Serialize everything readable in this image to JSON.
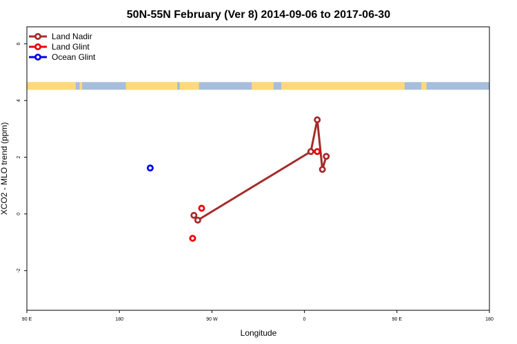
{
  "chart_data": {
    "type": "scatter",
    "title": "50N-55N February (Ver 8)   2014-09-06 to 2017-06-30",
    "xlabel": "Longitude",
    "ylabel": "XCO2 - MLO trend (ppm)",
    "xlim": [
      -180,
      180
    ],
    "ylim": [
      -3.4,
      6.6
    ],
    "x_ticks": [
      {
        "value": -180,
        "label": "90 E"
      },
      {
        "value": -108,
        "label": "180"
      },
      {
        "value": -36,
        "label": "90 W"
      },
      {
        "value": 36,
        "label": "0"
      },
      {
        "value": 108,
        "label": "90 E"
      },
      {
        "value": 180,
        "label": "180"
      }
    ],
    "y_ticks": [
      {
        "value": -2,
        "label": "-2"
      },
      {
        "value": 0,
        "label": "0"
      },
      {
        "value": 2,
        "label": "2"
      },
      {
        "value": 4,
        "label": "4"
      },
      {
        "value": 6,
        "label": "6"
      }
    ],
    "legend_position": "top-left",
    "land_mask_band": {
      "y_bottom": 4.38,
      "y_top": 4.65,
      "land_color": "#FFD97A",
      "ocean_color": "#A6BDDB"
    },
    "land_segments": [
      [
        -180,
        -142
      ],
      [
        -139,
        -137
      ],
      [
        -103,
        -63
      ],
      [
        -61,
        -46
      ],
      [
        -5,
        12
      ],
      [
        18,
        114
      ],
      [
        127,
        131
      ]
    ],
    "series": [
      {
        "name": "Land Nadir",
        "color": "#A52A2A",
        "connect": true,
        "points": [
          {
            "x": -50,
            "y": -0.05
          },
          {
            "x": -47,
            "y": -0.22
          },
          {
            "x": 41,
            "y": 2.2
          },
          {
            "x": 46,
            "y": 3.32
          },
          {
            "x": 50,
            "y": 1.57
          },
          {
            "x": 53,
            "y": 2.03
          }
        ]
      },
      {
        "name": "Land Glint",
        "color": "#EE0000",
        "connect": false,
        "points": [
          {
            "x": -51,
            "y": -0.86
          },
          {
            "x": -44,
            "y": 0.2
          },
          {
            "x": 46,
            "y": 2.2
          }
        ]
      },
      {
        "name": "Ocean Glint",
        "color": "#0000EE",
        "connect": false,
        "points": [
          {
            "x": -84,
            "y": 1.62
          }
        ]
      }
    ]
  }
}
